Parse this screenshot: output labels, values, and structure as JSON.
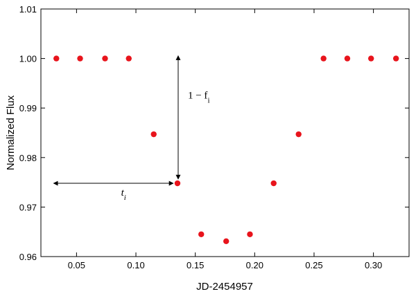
{
  "chart_data": {
    "type": "scatter",
    "title": "",
    "xlabel": "JD-2454957",
    "ylabel": "Normalized Flux",
    "xlim": [
      0.02,
      0.33
    ],
    "ylim": [
      0.96,
      1.01
    ],
    "x_ticks": [
      0.05,
      0.1,
      0.15,
      0.2,
      0.25,
      0.3
    ],
    "x_tick_labels": [
      "0.05",
      "0.10",
      "0.15",
      "0.20",
      "0.25",
      "0.30"
    ],
    "y_ticks": [
      0.96,
      0.97,
      0.98,
      0.99,
      1.0,
      1.01
    ],
    "y_tick_labels": [
      "0.96",
      "0.97",
      "0.98",
      "0.99",
      "1.00",
      "1.01"
    ],
    "grid": false,
    "legend": "none",
    "marker_color": "#e8141c",
    "series": [
      {
        "x": [
          0.033,
          0.053,
          0.074,
          0.094,
          0.115,
          0.135,
          0.155,
          0.176,
          0.196,
          0.216,
          0.237,
          0.258,
          0.278,
          0.298,
          0.319
        ],
        "y": [
          1.0,
          1.0,
          1.0,
          1.0,
          0.9847,
          0.9748,
          0.9645,
          0.9631,
          0.9645,
          0.9748,
          0.9847,
          1.0,
          1.0,
          1.0,
          1.0
        ]
      }
    ],
    "annotations": {
      "vertical_label": "1 − f",
      "vertical_label_sub": "i",
      "horizontal_label": "t",
      "horizontal_label_sub": "i"
    }
  }
}
